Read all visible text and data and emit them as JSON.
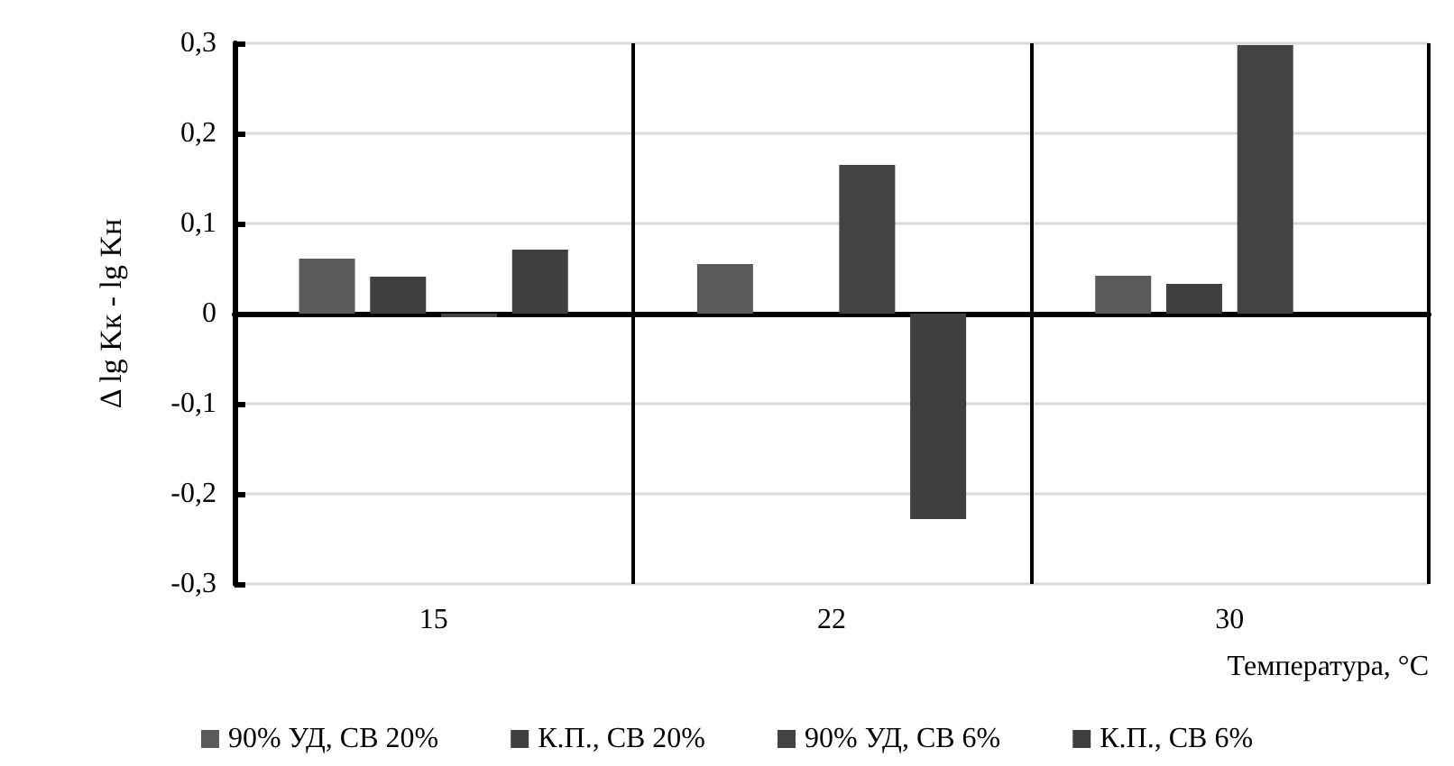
{
  "chart_data": {
    "type": "bar",
    "xlabel": "Температура, °C",
    "ylabel": "Δ lg Kк - lg Kн",
    "categories": [
      "15",
      "22",
      "30"
    ],
    "series": [
      {
        "name": "90% УД, СВ 20%",
        "color": "#5a5a5a",
        "values": [
          0.061,
          0.055,
          0.042
        ]
      },
      {
        "name": "К.П., СВ 20%",
        "color": "#404040",
        "values": [
          0.041,
          null,
          0.033
        ]
      },
      {
        "name": "90% УД, СВ 6%",
        "color": "#434343",
        "values": [
          -0.004,
          0.165,
          0.298
        ]
      },
      {
        "name": "К.П., СВ 6%",
        "color": "#404040",
        "values": [
          0.071,
          -0.228,
          null
        ]
      }
    ],
    "ylim": [
      -0.3,
      0.3
    ],
    "yticks": [
      {
        "value": -0.3,
        "label": "-0,3"
      },
      {
        "value": -0.2,
        "label": "-0,2"
      },
      {
        "value": -0.1,
        "label": "-0,1"
      },
      0,
      {
        "value": 0.1,
        "label": "0,1"
      },
      {
        "value": 0.2,
        "label": "0,2"
      },
      {
        "value": 0.3,
        "label": "0,3"
      }
    ],
    "grid": true,
    "legend": "bottom"
  }
}
